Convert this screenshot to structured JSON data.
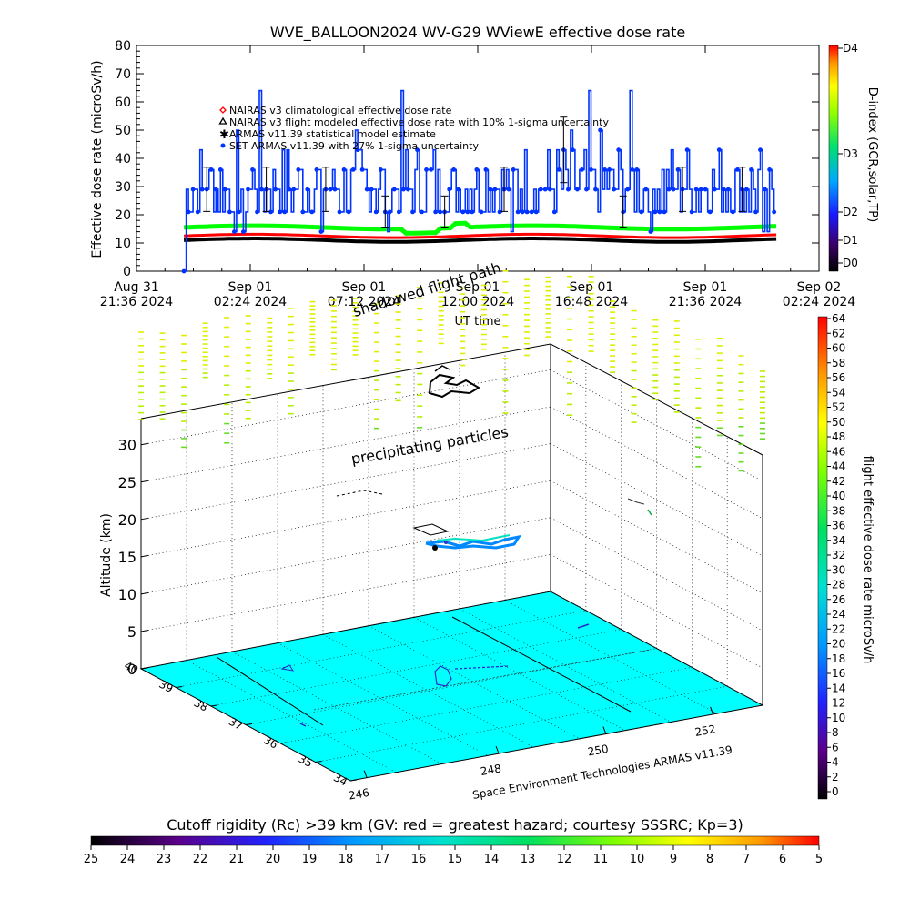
{
  "chart_data": [
    {
      "type": "line",
      "title": "WVE_BALLOON2024 WV-G29 WViewE effective dose rate",
      "xlabel": "UT time",
      "ylabel": "Effective dose rate (microSv/h)",
      "ylim": [
        0,
        80
      ],
      "yticks": [
        0,
        10,
        20,
        30,
        40,
        50,
        60,
        70,
        80
      ],
      "xticks": [
        {
          "l1": "Aug 31",
          "l2": "21:36 2024"
        },
        {
          "l1": "Sep 01",
          "l2": "02:24 2024"
        },
        {
          "l1": "Sep 01",
          "l2": "07:12 2024"
        },
        {
          "l1": "Sep 01",
          "l2": "12:00 2024"
        },
        {
          "l1": "Sep 01",
          "l2": "16:48 2024"
        },
        {
          "l1": "Sep 01",
          "l2": "21:36 2024"
        },
        {
          "l1": "Sep 02",
          "l2": "02:24 2024"
        }
      ],
      "xrange_hours": [
        0,
        28.8
      ],
      "data_hours": [
        2.0,
        27.0
      ],
      "legend": [
        {
          "label": "NAIRAS v3 climatological effective dose rate",
          "color": "#ff0000",
          "marker": "diamond"
        },
        {
          "label": "NAIRAS v3 flight modeled effective dose rate with 10% 1-sigma uncertainty",
          "color": "#000000",
          "marker": "triangle"
        },
        {
          "label": "ARMAS v11.39 statistical model estimate",
          "color": "#00ff00",
          "marker": "star"
        },
        {
          "label": "SET ARMAS v11.39 with 27% 1-sigma uncertainty",
          "color": "#0033ff",
          "marker": "dot"
        }
      ],
      "series": [
        {
          "name": "NAIRAS v3 climatological effective dose rate",
          "color": "#ff0000",
          "approx_value": 12.5
        },
        {
          "name": "NAIRAS v3 flight modeled effective dose rate with 10% 1-sigma uncertainty",
          "color": "#000000",
          "approx_value": 11
        },
        {
          "name": "ARMAS v11.39 statistical model estimate",
          "color": "#00ff00",
          "approx_value": 15.5
        },
        {
          "name": "SET ARMAS v11.39 with 27% 1-sigma uncertainty",
          "color": "#0033ff",
          "levels": [
            14,
            21,
            29,
            36,
            43,
            50,
            57,
            64
          ],
          "typical_range": [
            21,
            43
          ],
          "min": 0,
          "max": 65
        }
      ],
      "right_colorbar": {
        "title": "D-index (GCR,solar,TP)",
        "labels": [
          "D0",
          "D1",
          "D2",
          "D3",
          "D4"
        ]
      }
    },
    {
      "type": "scatter",
      "xlabel": "",
      "ylabel": "Altitude (km)",
      "zticks": [
        0,
        5,
        10,
        15,
        20,
        25,
        30
      ],
      "lat_ticks": [
        "40",
        "39",
        "38",
        "37",
        "36",
        "35",
        "34"
      ],
      "lon_ticks": [
        "246",
        "248",
        "250",
        "252"
      ],
      "annotations": [
        "shadowed flight path",
        "precipitating particles"
      ],
      "credit": "Space Environment Technologies ARMAS v11.39",
      "right_colorbar": {
        "title": "flight effective dose rate microSv/h",
        "labels": [
          "0",
          "2",
          "4",
          "6",
          "8",
          "10",
          "12",
          "14",
          "16",
          "18",
          "20",
          "22",
          "24",
          "26",
          "28",
          "30",
          "32",
          "34",
          "36",
          "38",
          "40",
          "42",
          "44",
          "46",
          "48",
          "50",
          "52",
          "54",
          "56",
          "58",
          "60",
          "62",
          "64"
        ]
      }
    }
  ],
  "bottom_colorbar": {
    "title": "Cutoff rigidity (Rc) >39 km (GV: red = greatest hazard; courtesy SSSRC; Kp=3)",
    "labels": [
      "25",
      "24",
      "23",
      "22",
      "21",
      "20",
      "19",
      "18",
      "17",
      "16",
      "15",
      "14",
      "13",
      "12",
      "11",
      "10",
      "9",
      "8",
      "7",
      "6",
      "5"
    ]
  }
}
